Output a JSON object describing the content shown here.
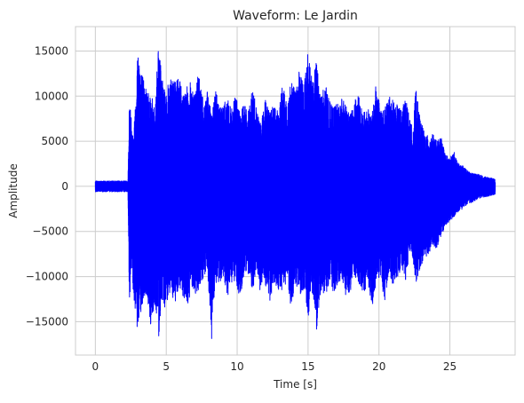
{
  "chart_data": {
    "type": "line",
    "title": "Waveform: Le Jardin",
    "xlabel": "Time [s]",
    "ylabel": "Amplitude",
    "xlim": [
      -1.4,
      29.6
    ],
    "ylim": [
      -18700,
      17700
    ],
    "xticks": [
      0,
      5,
      10,
      15,
      20,
      25
    ],
    "yticks": [
      -15000,
      -10000,
      -5000,
      0,
      5000,
      10000,
      15000
    ],
    "grid": true,
    "line_color": "#0000ff",
    "grid_color": "#cccccc",
    "duration_s": 28.2,
    "series": [
      {
        "envelope_x": [
          0,
          2.3,
          2.4,
          2.55,
          2.7,
          3.0,
          3.3,
          3.6,
          3.9,
          4.2,
          4.45,
          4.7,
          5.0,
          5.3,
          5.6,
          5.9,
          6.2,
          6.5,
          6.8,
          7.0,
          7.3,
          7.6,
          7.9,
          8.2,
          8.45,
          8.7,
          9.0,
          9.3,
          9.6,
          9.9,
          10.2,
          10.5,
          10.8,
          11.1,
          11.4,
          11.65,
          11.8,
          12.0,
          12.3,
          12.6,
          12.9,
          13.2,
          13.5,
          13.8,
          14.1,
          14.4,
          14.7,
          15.0,
          15.3,
          15.6,
          15.9,
          16.2,
          16.5,
          16.8,
          17.1,
          17.4,
          17.7,
          18.0,
          18.3,
          18.6,
          18.9,
          19.2,
          19.5,
          19.8,
          20.1,
          20.4,
          20.7,
          21.0,
          21.3,
          21.6,
          21.9,
          22.2,
          22.4,
          22.6,
          22.9,
          23.2,
          23.5,
          23.8,
          24.1,
          24.4,
          24.7,
          25.0,
          25.3,
          25.6,
          25.9,
          26.2,
          26.5,
          26.8,
          27.1,
          27.4,
          27.7,
          28.0,
          28.2
        ],
        "envelope_max": [
          600,
          600,
          9800,
          7500,
          5500,
          15800,
          12500,
          11000,
          10500,
          8500,
          16200,
          12000,
          10000,
          13000,
          11500,
          12500,
          10000,
          11200,
          11800,
          10200,
          12800,
          9500,
          10500,
          8000,
          11000,
          9500,
          9000,
          9800,
          8500,
          10200,
          8000,
          9200,
          8500,
          11000,
          8500,
          7000,
          8000,
          10000,
          8500,
          9000,
          8200,
          11500,
          9000,
          12000,
          10500,
          13000,
          11000,
          15500,
          11500,
          14000,
          10000,
          11500,
          9500,
          8800,
          9200,
          10200,
          8800,
          8300,
          9500,
          10500,
          8200,
          8700,
          7800,
          11500,
          9000,
          8500,
          10500,
          9500,
          9000,
          8500,
          10000,
          7200,
          6500,
          11000,
          7500,
          6000,
          5500,
          5800,
          5000,
          5500,
          3500,
          3200,
          3800,
          2500,
          2300,
          1800,
          1500,
          1400,
          1300,
          1100,
          1000,
          900,
          800
        ],
        "envelope_min": [
          -600,
          -600,
          -13000,
          -9000,
          -12500,
          -16500,
          -13500,
          -12000,
          -15500,
          -13000,
          -17000,
          -12500,
          -14000,
          -11500,
          -13000,
          -11000,
          -12500,
          -13500,
          -11000,
          -12000,
          -11500,
          -10500,
          -9500,
          -17000,
          -10500,
          -11500,
          -10000,
          -12800,
          -11000,
          -10500,
          -12500,
          -9500,
          -10000,
          -11500,
          -9000,
          -12500,
          -10000,
          -11000,
          -13000,
          -10500,
          -11500,
          -12000,
          -10500,
          -13500,
          -11000,
          -12000,
          -11500,
          -14500,
          -12000,
          -16000,
          -11500,
          -12500,
          -10500,
          -12000,
          -11000,
          -10500,
          -12800,
          -11500,
          -10000,
          -11000,
          -12500,
          -10500,
          -13500,
          -11000,
          -10000,
          -12800,
          -9500,
          -11000,
          -10500,
          -9000,
          -10500,
          -7000,
          -8000,
          -11000,
          -9000,
          -8000,
          -7500,
          -6500,
          -7000,
          -5500,
          -4500,
          -3800,
          -3500,
          -2800,
          -2500,
          -2000,
          -1800,
          -1600,
          -1400,
          -1200,
          -1100,
          -1000,
          -900
        ]
      }
    ]
  }
}
